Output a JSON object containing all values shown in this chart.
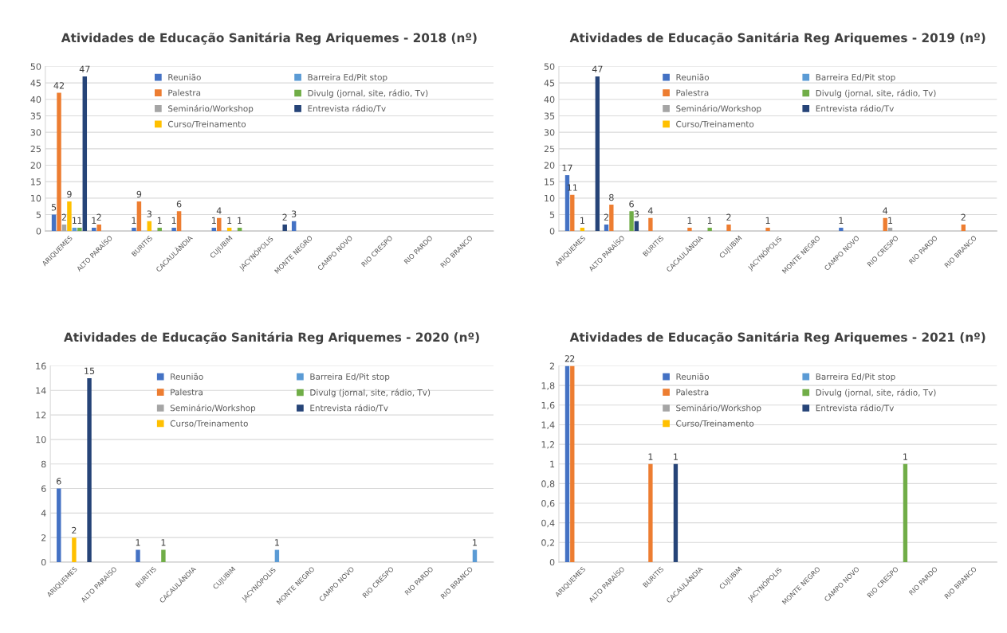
{
  "chart_data": [
    {
      "type": "bar",
      "title": "Atividades de Educação Sanitária Reg Ariquemes - 2018 (nº)",
      "categories": [
        "ARIQUEMES",
        "ALTO PARAÍSO",
        "BURITIS",
        "CACAULÂNDIA",
        "CUJUBIM",
        "JACYNÓPOLIS",
        "MONTE NEGRO",
        "CAMPO NOVO",
        "RIO CRESPO",
        "RIO PARDO",
        "RIO BRANCO"
      ],
      "series": [
        {
          "name": "Reunião",
          "color": "#4472c4",
          "values": [
            5,
            1,
            1,
            1,
            1,
            null,
            3,
            null,
            null,
            null,
            null
          ]
        },
        {
          "name": "Palestra",
          "color": "#ed7d31",
          "values": [
            42,
            2,
            9,
            6,
            4,
            null,
            null,
            null,
            null,
            null,
            null
          ]
        },
        {
          "name": "Seminário/Workshop",
          "color": "#a5a5a5",
          "values": [
            2,
            null,
            null,
            null,
            null,
            null,
            null,
            null,
            null,
            null,
            null
          ]
        },
        {
          "name": "Curso/Treinamento",
          "color": "#ffc000",
          "values": [
            9,
            null,
            3,
            null,
            1,
            null,
            null,
            null,
            null,
            null,
            null
          ]
        },
        {
          "name": "Barreira Ed/Pit stop",
          "color": "#5b9bd5",
          "values": [
            1,
            null,
            null,
            null,
            null,
            null,
            null,
            null,
            null,
            null,
            null
          ]
        },
        {
          "name": "Divulg (jornal, site, rádio, Tv)",
          "color": "#70ad47",
          "values": [
            1,
            null,
            1,
            null,
            1,
            null,
            null,
            null,
            null,
            null,
            null
          ]
        },
        {
          "name": "Entrevista rádio/Tv",
          "color": "#264478",
          "values": [
            47,
            null,
            null,
            null,
            null,
            2,
            null,
            null,
            null,
            null,
            null
          ]
        }
      ],
      "ylim": [
        0,
        50
      ],
      "yticks": [
        0,
        5,
        10,
        15,
        20,
        25,
        30,
        35,
        40,
        45,
        50
      ],
      "grid": "y",
      "legend": "top",
      "data_labels": true
    },
    {
      "type": "bar",
      "title": "Atividades de Educação Sanitária Reg Ariquemes - 2019 (nº)",
      "categories": [
        "ARIQUEMES",
        "ALTO PARAÍSO",
        "BURITIS",
        "CACAULÂNDIA",
        "CUJUBIM",
        "JACYNÓPOLIS",
        "MONTE NEGRO",
        "CAMPO NOVO",
        "RIO CRESPO",
        "RIO PARDO",
        "RIO BRANCO"
      ],
      "series": [
        {
          "name": "Reunião",
          "color": "#4472c4",
          "values": [
            17,
            2,
            null,
            null,
            null,
            null,
            null,
            1,
            null,
            null,
            null
          ]
        },
        {
          "name": "Palestra",
          "color": "#ed7d31",
          "values": [
            11,
            8,
            4,
            1,
            2,
            1,
            null,
            null,
            4,
            null,
            2
          ]
        },
        {
          "name": "Seminário/Workshop",
          "color": "#a5a5a5",
          "values": [
            null,
            null,
            null,
            null,
            null,
            null,
            null,
            null,
            1,
            null,
            null
          ]
        },
        {
          "name": "Curso/Treinamento",
          "color": "#ffc000",
          "values": [
            1,
            null,
            null,
            null,
            null,
            null,
            null,
            null,
            null,
            null,
            null
          ]
        },
        {
          "name": "Barreira Ed/Pit stop",
          "color": "#5b9bd5",
          "values": [
            null,
            null,
            null,
            null,
            null,
            null,
            null,
            null,
            null,
            null,
            null
          ]
        },
        {
          "name": "Divulg (jornal, site, rádio, Tv)",
          "color": "#70ad47",
          "values": [
            null,
            6,
            null,
            1,
            null,
            null,
            null,
            null,
            null,
            null,
            null
          ]
        },
        {
          "name": "Entrevista rádio/Tv",
          "color": "#264478",
          "values": [
            47,
            3,
            null,
            null,
            null,
            null,
            null,
            null,
            null,
            null,
            null
          ]
        }
      ],
      "ylim": [
        0,
        50
      ],
      "yticks": [
        0,
        5,
        10,
        15,
        20,
        25,
        30,
        35,
        40,
        45,
        50
      ],
      "grid": "y",
      "legend": "top",
      "data_labels": true
    },
    {
      "type": "bar",
      "title": "Atividades de Educação Sanitária Reg Ariquemes - 2020 (nº)",
      "categories": [
        "ARIQUEMES",
        "ALTO PARAÍSO",
        "BURITIS",
        "CACAULÂNDIA",
        "CUJUBIM",
        "JACYNÓPOLIS",
        "MONTE NEGRO",
        "CAMPO NOVO",
        "RIO CRESPO",
        "RIO PARDO",
        "RIO BRANCO"
      ],
      "series": [
        {
          "name": "Reunião",
          "color": "#4472c4",
          "values": [
            6,
            null,
            1,
            null,
            null,
            null,
            null,
            null,
            null,
            null,
            null
          ]
        },
        {
          "name": "Palestra",
          "color": "#ed7d31",
          "values": [
            null,
            null,
            null,
            null,
            null,
            null,
            null,
            null,
            null,
            null,
            null
          ]
        },
        {
          "name": "Seminário/Workshop",
          "color": "#a5a5a5",
          "values": [
            null,
            null,
            null,
            null,
            null,
            null,
            null,
            null,
            null,
            null,
            null
          ]
        },
        {
          "name": "Curso/Treinamento",
          "color": "#ffc000",
          "values": [
            2,
            null,
            null,
            null,
            null,
            null,
            null,
            null,
            null,
            null,
            null
          ]
        },
        {
          "name": "Barreira Ed/Pit stop",
          "color": "#5b9bd5",
          "values": [
            null,
            null,
            null,
            null,
            null,
            1,
            null,
            null,
            null,
            null,
            1
          ]
        },
        {
          "name": "Divulg (jornal, site, rádio, Tv)",
          "color": "#70ad47",
          "values": [
            null,
            null,
            1,
            null,
            null,
            null,
            null,
            null,
            null,
            null,
            null
          ]
        },
        {
          "name": "Entrevista rádio/Tv",
          "color": "#264478",
          "values": [
            15,
            null,
            null,
            null,
            null,
            null,
            null,
            null,
            null,
            null,
            null
          ]
        }
      ],
      "ylim": [
        0,
        16
      ],
      "yticks": [
        0,
        2,
        4,
        6,
        8,
        10,
        12,
        14,
        16
      ],
      "grid": "y",
      "legend": "top",
      "data_labels": true
    },
    {
      "type": "bar",
      "title": "Atividades de Educação Sanitária Reg Ariquemes - 2021 (nº)",
      "categories": [
        "ARIQUEMES",
        "ALTO PARAÍSO",
        "BURITIS",
        "CACAULÂNDIA",
        "CUJUBIM",
        "JACYNÓPOLIS",
        "MONTE NEGRO",
        "CAMPO NOVO",
        "RIO CRESPO",
        "RIO PARDO",
        "RIO BRANCO"
      ],
      "series": [
        {
          "name": "Reunião",
          "color": "#4472c4",
          "values": [
            2,
            null,
            null,
            null,
            null,
            null,
            null,
            null,
            null,
            null,
            null
          ]
        },
        {
          "name": "Palestra",
          "color": "#ed7d31",
          "values": [
            2,
            null,
            1,
            null,
            null,
            null,
            null,
            null,
            null,
            null,
            null
          ]
        },
        {
          "name": "Seminário/Workshop",
          "color": "#a5a5a5",
          "values": [
            null,
            null,
            null,
            null,
            null,
            null,
            null,
            null,
            null,
            null,
            null
          ]
        },
        {
          "name": "Curso/Treinamento",
          "color": "#ffc000",
          "values": [
            null,
            null,
            null,
            null,
            null,
            null,
            null,
            null,
            null,
            null,
            null
          ]
        },
        {
          "name": "Barreira Ed/Pit stop",
          "color": "#5b9bd5",
          "values": [
            null,
            null,
            null,
            null,
            null,
            null,
            null,
            null,
            null,
            null,
            null
          ]
        },
        {
          "name": "Divulg (jornal, site, rádio, Tv)",
          "color": "#70ad47",
          "values": [
            null,
            null,
            null,
            null,
            null,
            null,
            null,
            null,
            1,
            null,
            null
          ]
        },
        {
          "name": "Entrevista rádio/Tv",
          "color": "#264478",
          "values": [
            null,
            null,
            1,
            null,
            null,
            null,
            null,
            null,
            null,
            null,
            null
          ]
        }
      ],
      "ylim": [
        0,
        2
      ],
      "yticks": [
        0,
        {
          "value": 0.2,
          "label": "0,2"
        },
        {
          "value": 0.4,
          "label": "0,4"
        },
        {
          "value": 0.6,
          "label": "0,6"
        },
        {
          "value": 0.8,
          "label": "0,8"
        },
        1,
        {
          "value": 1.2,
          "label": "1,2"
        },
        {
          "value": 1.4,
          "label": "1,4"
        },
        {
          "value": 1.6,
          "label": "1,6"
        },
        {
          "value": 1.8,
          "label": "1,8"
        },
        2
      ],
      "grid": "y",
      "legend": "top",
      "data_labels": true
    }
  ]
}
